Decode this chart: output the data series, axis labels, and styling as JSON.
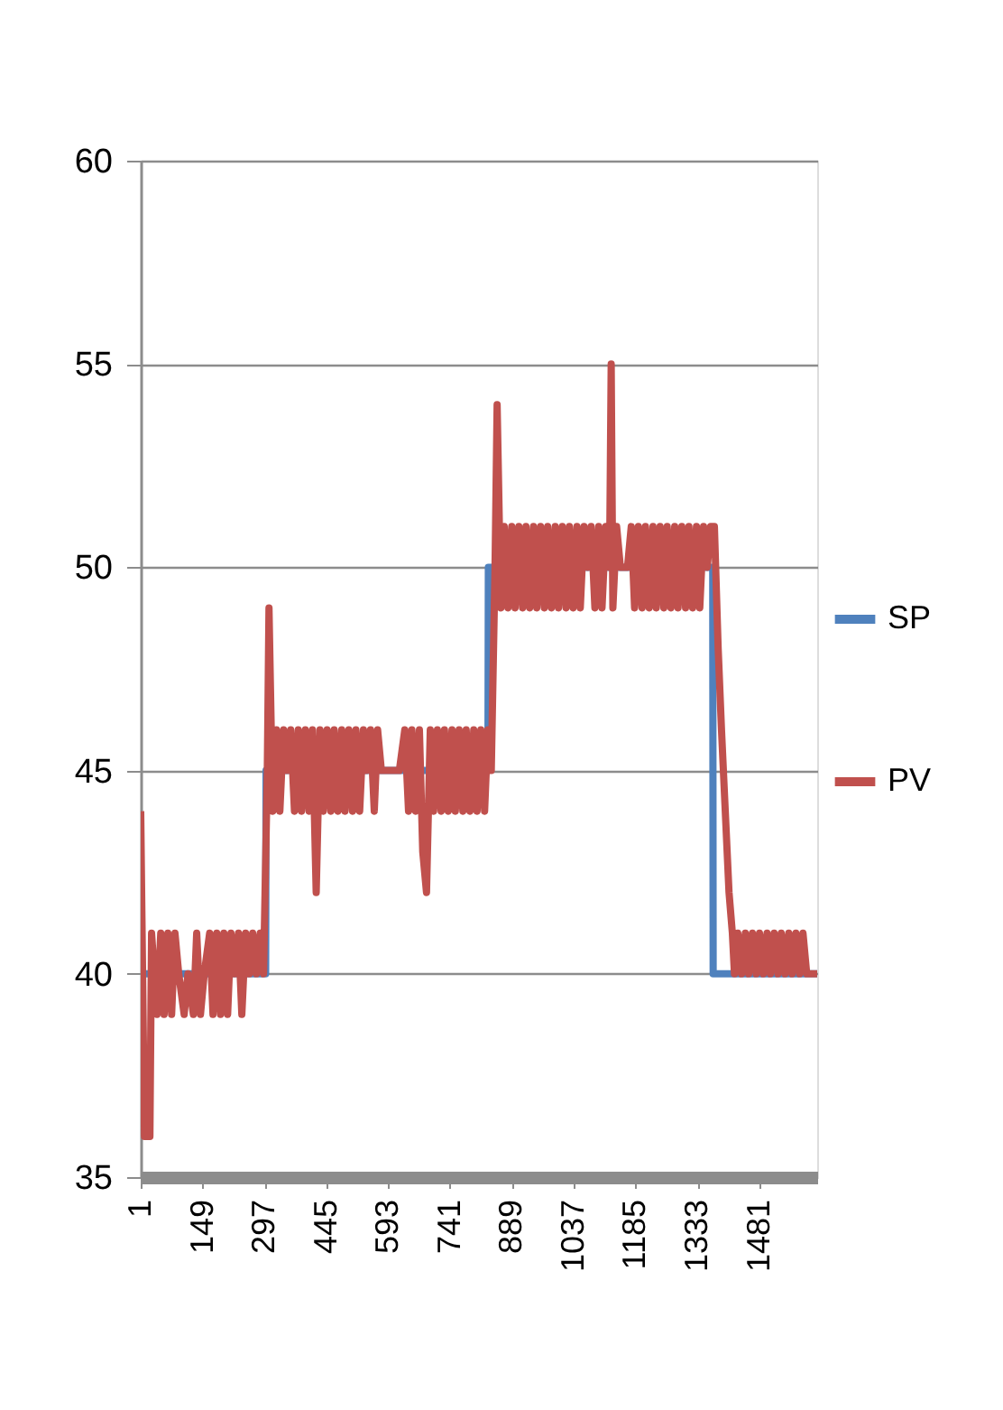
{
  "chart_data": {
    "type": "line",
    "xlim": [
      1,
      1620
    ],
    "xticks": [
      1,
      149,
      297,
      445,
      593,
      741,
      889,
      1037,
      1185,
      1333,
      1481
    ],
    "ylim": [
      35,
      60
    ],
    "yticks": [
      35,
      40,
      45,
      50,
      55,
      60
    ],
    "grid": "y",
    "legend": "right",
    "line_style": "solid",
    "marker": "none",
    "series": [
      {
        "name": "SP",
        "color": "#4f81bd",
        "x": [
          1,
          300,
          301,
          832,
          833,
          1370,
          1371,
          1620
        ],
        "values": [
          40,
          40,
          45,
          45,
          50,
          50,
          40,
          40
        ]
      },
      {
        "name": "PV",
        "color": "#c0504d",
        "x": [
          1,
          10,
          23,
          27,
          40,
          49,
          57,
          66,
          75,
          83,
          92,
          105,
          114,
          127,
          135,
          144,
          153,
          166,
          174,
          183,
          192,
          200,
          209,
          217,
          226,
          235,
          243,
          252,
          261,
          269,
          278,
          287,
          295,
          304,
          308,
          317,
          326,
          334,
          343,
          352,
          360,
          369,
          378,
          386,
          395,
          404,
          412,
          421,
          430,
          438,
          447,
          456,
          464,
          473,
          482,
          490,
          499,
          508,
          516,
          525,
          534,
          542,
          551,
          560,
          568,
          577,
          586,
          603,
          620,
          633,
          642,
          650,
          659,
          668,
          676,
          685,
          694,
          702,
          711,
          720,
          728,
          737,
          746,
          754,
          763,
          772,
          780,
          789,
          798,
          806,
          815,
          824,
          832,
          840,
          849,
          854,
          863,
          871,
          880,
          889,
          897,
          906,
          915,
          923,
          932,
          941,
          949,
          958,
          967,
          975,
          984,
          993,
          1001,
          1010,
          1019,
          1027,
          1036,
          1045,
          1053,
          1062,
          1071,
          1079,
          1088,
          1097,
          1105,
          1114,
          1123,
          1127,
          1131,
          1140,
          1149,
          1166,
          1175,
          1183,
          1192,
          1201,
          1209,
          1218,
          1227,
          1235,
          1244,
          1253,
          1261,
          1270,
          1279,
          1287,
          1296,
          1305,
          1313,
          1322,
          1331,
          1339,
          1348,
          1357,
          1365,
          1374,
          1383,
          1391,
          1400,
          1409,
          1417,
          1422,
          1430,
          1439,
          1448,
          1456,
          1465,
          1474,
          1482,
          1491,
          1500,
          1508,
          1517,
          1526,
          1534,
          1543,
          1552,
          1560,
          1569,
          1578,
          1586,
          1595,
          1604,
          1620
        ],
        "values": [
          44,
          36,
          36,
          41,
          39,
          41,
          39,
          41,
          39,
          41,
          40,
          39,
          40,
          39,
          41,
          39,
          40,
          41,
          39,
          41,
          39,
          41,
          39,
          41,
          40,
          41,
          39,
          41,
          40,
          41,
          40,
          41,
          40,
          45,
          49,
          44,
          46,
          44,
          46,
          45,
          46,
          44,
          46,
          44,
          46,
          44,
          46,
          42,
          46,
          44,
          46,
          44,
          46,
          44,
          46,
          44,
          46,
          44,
          46,
          44,
          46,
          45,
          46,
          44,
          46,
          45,
          45,
          45,
          45,
          46,
          44,
          46,
          44,
          46,
          43,
          42,
          46,
          44,
          46,
          44,
          46,
          44,
          46,
          44,
          46,
          44,
          46,
          44,
          46,
          44,
          46,
          44,
          46,
          45,
          50,
          54,
          49,
          51,
          49,
          51,
          49,
          51,
          49,
          51,
          49,
          51,
          49,
          51,
          49,
          51,
          49,
          51,
          49,
          51,
          49,
          51,
          49,
          51,
          49,
          51,
          50,
          51,
          49,
          51,
          49,
          51,
          50,
          55,
          49,
          51,
          50,
          50,
          51,
          49,
          51,
          49,
          51,
          49,
          51,
          49,
          51,
          49,
          51,
          49,
          51,
          49,
          51,
          49,
          51,
          49,
          51,
          49,
          51,
          50,
          51,
          51,
          48,
          46,
          44,
          42,
          41,
          40,
          41,
          40,
          41,
          40,
          41,
          40,
          41,
          40,
          41,
          40,
          41,
          40,
          41,
          40,
          41,
          40,
          41,
          40,
          41,
          40,
          40,
          40
        ]
      }
    ]
  }
}
